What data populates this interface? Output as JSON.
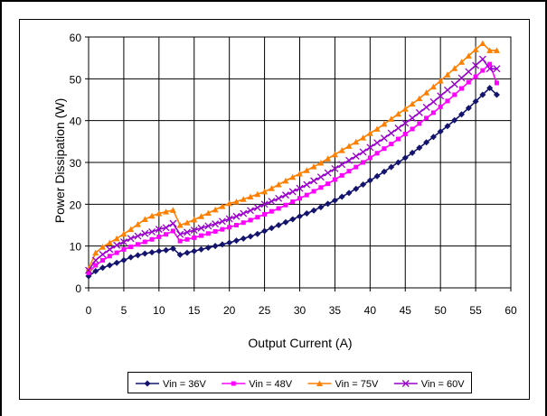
{
  "chart_data": {
    "type": "line",
    "xlabel": "Output Current (A)",
    "ylabel": "Power Dissipation (W)",
    "xlim": [
      0,
      60
    ],
    "ylim": [
      0,
      60
    ],
    "xticks": [
      "0",
      "5",
      "10",
      "15",
      "20",
      "25",
      "30",
      "35",
      "40",
      "45",
      "50",
      "55",
      "60"
    ],
    "yticks": [
      "0",
      "10",
      "20",
      "30",
      "40",
      "50",
      "60"
    ],
    "grid": true,
    "legend_position": "bottom",
    "x": [
      0,
      1,
      2,
      3,
      4,
      5,
      6,
      7,
      8,
      9,
      10,
      11,
      12,
      13,
      14,
      15,
      16,
      17,
      18,
      19,
      20,
      21,
      22,
      23,
      24,
      25,
      26,
      27,
      28,
      29,
      30,
      31,
      32,
      33,
      34,
      35,
      36,
      37,
      38,
      39,
      40,
      41,
      42,
      43,
      44,
      45,
      46,
      47,
      48,
      49,
      50,
      51,
      52,
      53,
      54,
      55,
      56,
      57,
      58
    ],
    "series": [
      {
        "name": "Vin = 36V",
        "color": "#14146e",
        "marker": "diamond",
        "values": [
          2.8,
          4.0,
          4.8,
          5.4,
          6.0,
          6.6,
          7.3,
          7.8,
          8.2,
          8.5,
          8.8,
          9.0,
          9.4,
          7.9,
          8.4,
          8.8,
          9.2,
          9.6,
          10.0,
          10.4,
          10.8,
          11.3,
          11.8,
          12.3,
          12.9,
          13.6,
          14.3,
          15.0,
          15.7,
          16.4,
          17.1,
          17.8,
          18.5,
          19.3,
          20.1,
          20.9,
          21.8,
          22.7,
          23.7,
          24.7,
          25.7,
          26.7,
          27.8,
          28.9,
          30.0,
          31.1,
          32.3,
          33.5,
          34.8,
          36.1,
          37.4,
          38.7,
          40.1,
          41.5,
          43.0,
          44.6,
          46.2,
          47.8,
          46.2
        ]
      },
      {
        "name": "Vin = 48V",
        "color": "#ff00ff",
        "marker": "square",
        "values": [
          3.6,
          5.4,
          6.6,
          7.6,
          8.4,
          9.2,
          9.8,
          10.4,
          11.0,
          11.6,
          12.2,
          12.8,
          13.6,
          11.2,
          11.6,
          12.0,
          12.5,
          13.0,
          13.5,
          14.0,
          14.5,
          15.0,
          15.6,
          16.2,
          16.9,
          17.6,
          18.3,
          19.0,
          19.8,
          20.6,
          21.4,
          22.2,
          23.1,
          24.0,
          24.9,
          25.9,
          26.9,
          27.9,
          28.9,
          30.0,
          31.1,
          32.2,
          33.3,
          34.4,
          35.6,
          36.8,
          38.0,
          39.3,
          40.6,
          41.9,
          43.3,
          44.7,
          46.2,
          47.7,
          49.2,
          50.5,
          52.0,
          53.5,
          49.0
        ]
      },
      {
        "name": "Vin = 75V",
        "color": "#ff7f00",
        "marker": "triangle",
        "values": [
          4.6,
          8.4,
          9.8,
          10.8,
          11.8,
          12.9,
          14.0,
          15.2,
          16.4,
          17.2,
          17.8,
          18.2,
          18.6,
          15.0,
          15.6,
          16.3,
          17.1,
          17.9,
          18.7,
          19.5,
          20.2,
          20.6,
          21.2,
          21.8,
          22.4,
          23.0,
          23.8,
          24.7,
          25.6,
          26.5,
          27.3,
          28.1,
          29.0,
          29.9,
          30.9,
          31.9,
          32.9,
          33.9,
          34.9,
          35.9,
          37.0,
          38.0,
          39.2,
          40.4,
          41.6,
          42.8,
          44.0,
          45.3,
          46.7,
          48.1,
          49.5,
          51.0,
          52.5,
          54.0,
          55.5,
          57.0,
          58.5,
          56.8,
          56.8
        ]
      },
      {
        "name": "Vin = 60V",
        "color": "#9900cc",
        "marker": "x",
        "values": [
          4.2,
          6.6,
          8.0,
          9.2,
          10.2,
          11.0,
          11.8,
          12.4,
          13.0,
          13.4,
          14.0,
          14.4,
          15.4,
          12.8,
          13.3,
          13.8,
          14.3,
          14.8,
          15.3,
          15.9,
          16.5,
          17.1,
          17.8,
          18.5,
          19.2,
          20.0,
          20.7,
          21.4,
          22.2,
          23.0,
          23.8,
          24.7,
          25.6,
          26.5,
          27.5,
          28.5,
          29.5,
          30.5,
          31.5,
          32.5,
          33.6,
          34.7,
          35.8,
          37.0,
          38.2,
          39.4,
          40.6,
          41.9,
          43.2,
          44.5,
          45.9,
          47.3,
          48.7,
          50.2,
          51.7,
          53.2,
          54.7,
          52.4,
          52.4
        ]
      }
    ]
  }
}
